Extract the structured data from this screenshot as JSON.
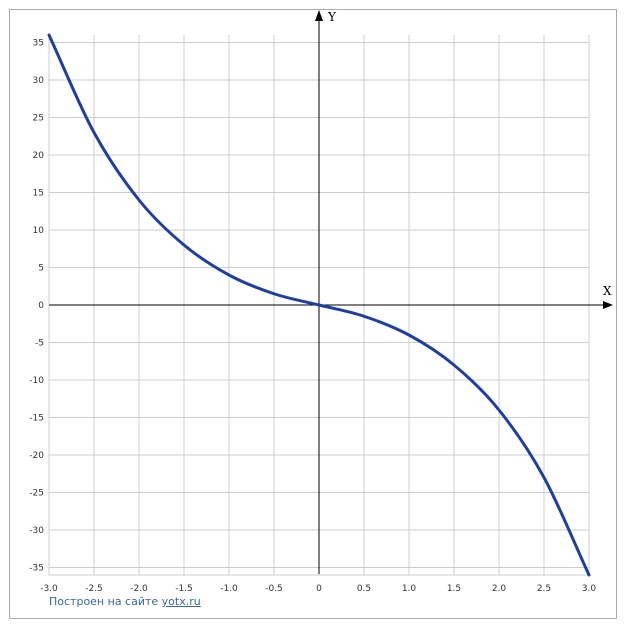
{
  "chart_data": {
    "type": "line",
    "xlabel": "X",
    "ylabel": "Y",
    "xlim": [
      -3,
      3
    ],
    "ylim": [
      -36,
      36
    ],
    "grid": true,
    "x_ticks": [
      "-3.0",
      "-2.5",
      "-2.0",
      "-1.5",
      "-1.0",
      "-0.5",
      "0",
      "0.5",
      "1.0",
      "1.5",
      "2.0",
      "2.5",
      "3.0"
    ],
    "y_ticks": [
      "35",
      "30",
      "25",
      "20",
      "15",
      "10",
      "5",
      "0",
      "-5",
      "-10",
      "-15",
      "-20",
      "-25",
      "-30",
      "-35"
    ],
    "series": [
      {
        "color": "#1f3fa0",
        "x": [
          -3.0,
          -2.5,
          -2.0,
          -1.5,
          -1.0,
          -0.5,
          0,
          0.5,
          1.0,
          1.5,
          2.0,
          2.5,
          3.0
        ],
        "y": [
          36,
          23,
          14,
          8,
          4,
          1.5,
          0,
          -1.5,
          -4,
          -8,
          -14,
          -23,
          -36
        ]
      }
    ]
  },
  "footer": {
    "credit_text": "Построен на сайте",
    "credit_link": "yotx.ru"
  }
}
